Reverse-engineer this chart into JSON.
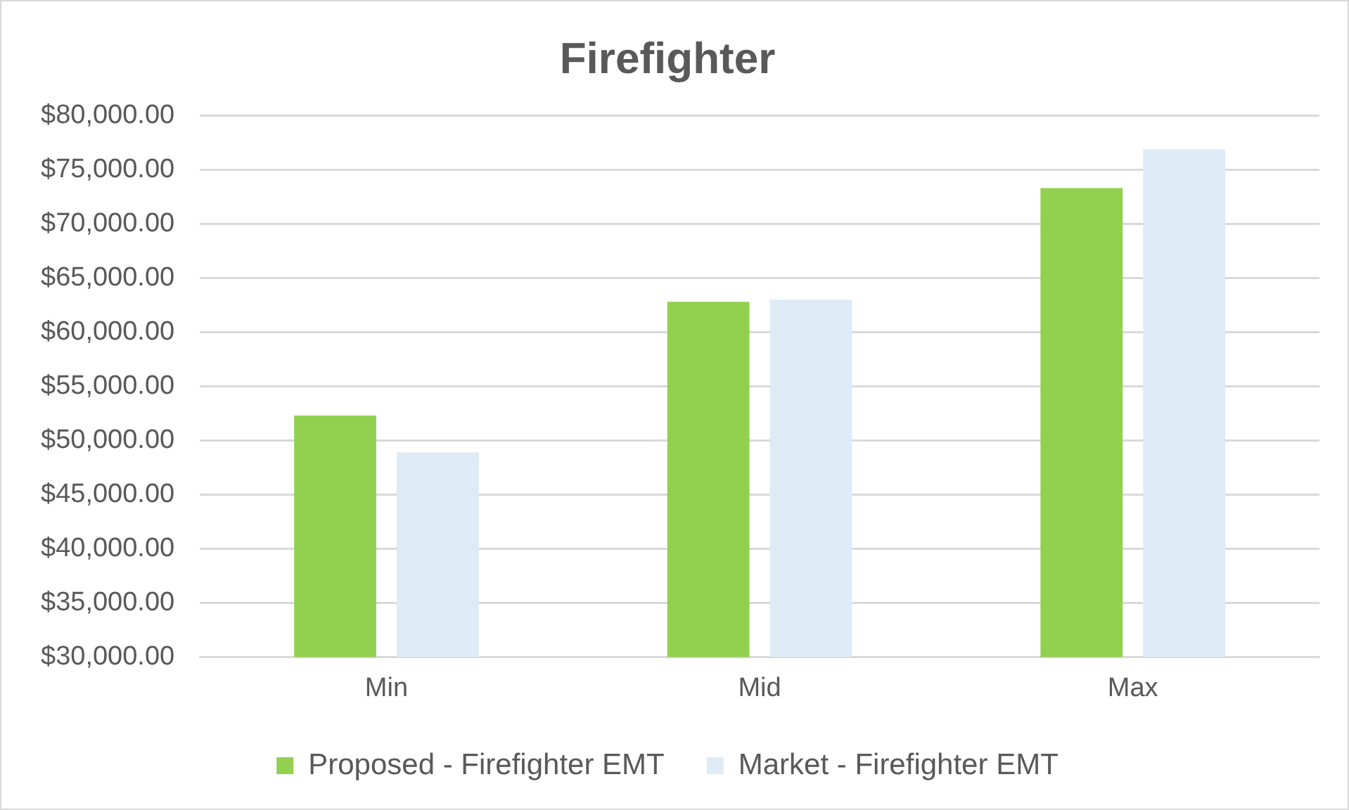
{
  "chart_data": {
    "type": "bar",
    "title": "Firefighter",
    "categories": [
      "Min",
      "Mid",
      "Max"
    ],
    "series": [
      {
        "name": "Proposed - Firefighter EMT",
        "color": "#92d050",
        "values": [
          52300,
          62800,
          73300
        ]
      },
      {
        "name": "Market - Firefighter EMT",
        "color": "#ddebf7",
        "values": [
          48900,
          63000,
          76900
        ]
      }
    ],
    "ylim": [
      30000,
      80000
    ],
    "yticks": [
      {
        "value": 30000,
        "label": "$30,000.00"
      },
      {
        "value": 35000,
        "label": "$35,000.00"
      },
      {
        "value": 40000,
        "label": "$40,000.00"
      },
      {
        "value": 45000,
        "label": "$45,000.00"
      },
      {
        "value": 50000,
        "label": "$50,000.00"
      },
      {
        "value": 55000,
        "label": "$55,000.00"
      },
      {
        "value": 60000,
        "label": "$60,000.00"
      },
      {
        "value": 65000,
        "label": "$65,000.00"
      },
      {
        "value": 70000,
        "label": "$70,000.00"
      },
      {
        "value": 75000,
        "label": "$75,000.00"
      },
      {
        "value": 80000,
        "label": "$80,000.00"
      }
    ],
    "grid": "y",
    "legend": "bottom"
  }
}
